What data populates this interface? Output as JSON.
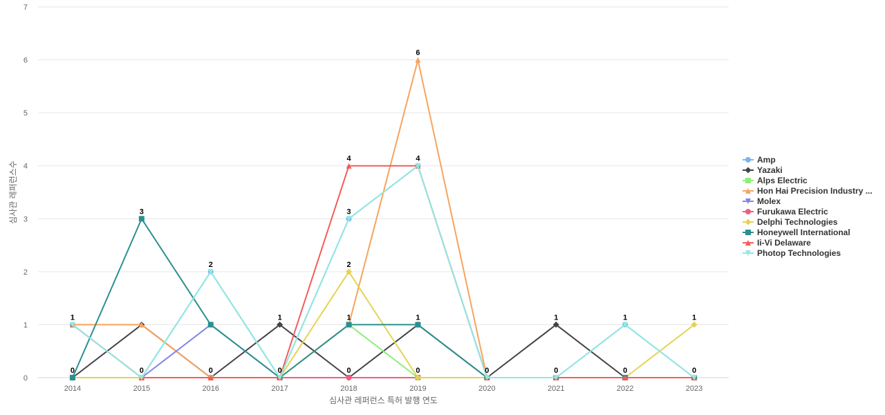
{
  "chart_data": {
    "type": "line",
    "title": "",
    "xlabel": "심사관 레퍼런스 특허 발행 연도",
    "ylabel": "심사관 레퍼런스수",
    "categories": [
      "2014",
      "2015",
      "2016",
      "2017",
      "2018",
      "2019",
      "2020",
      "2021",
      "2022",
      "2023"
    ],
    "y_ticks": [
      "0",
      "1",
      "2",
      "3",
      "4",
      "5",
      "6",
      "7"
    ],
    "ylim": [
      0,
      7
    ],
    "grid": true,
    "legend_position": "right",
    "series": [
      {
        "name": "Amp",
        "values": [
          1,
          0,
          2,
          0,
          3,
          4,
          0,
          0,
          1,
          0
        ],
        "color": "#7cb5ec",
        "marker": "circle"
      },
      {
        "name": "Yazaki",
        "values": [
          0,
          1,
          0,
          1,
          0,
          1,
          0,
          1,
          0,
          0
        ],
        "color": "#434348",
        "marker": "diamond"
      },
      {
        "name": "Alps Electric",
        "values": [
          0,
          0,
          0,
          0,
          1,
          0,
          0,
          0,
          0,
          0
        ],
        "color": "#90ed7d",
        "marker": "square"
      },
      {
        "name": "Hon Hai Precision Industry ...",
        "values": [
          1,
          1,
          0,
          0,
          1,
          6,
          0,
          0,
          0,
          0
        ],
        "color": "#f7a35c",
        "marker": "triangle"
      },
      {
        "name": "Molex",
        "values": [
          0,
          0,
          1,
          0,
          0,
          0,
          0,
          0,
          0,
          0
        ],
        "color": "#8085e9",
        "marker": "triangle-down"
      },
      {
        "name": "Furukawa Electric",
        "values": [
          0,
          0,
          0,
          0,
          0,
          0,
          0,
          0,
          0,
          0
        ],
        "color": "#f15c80",
        "marker": "circle"
      },
      {
        "name": "Delphi Technologies",
        "values": [
          0,
          0,
          0,
          0,
          2,
          0,
          0,
          0,
          0,
          1
        ],
        "color": "#e4d354",
        "marker": "diamond"
      },
      {
        "name": "Honeywell International",
        "values": [
          0,
          3,
          1,
          0,
          1,
          1,
          0,
          0,
          0,
          0
        ],
        "color": "#2b908f",
        "marker": "square"
      },
      {
        "name": "Ii-Vi Delaware",
        "values": [
          1,
          0,
          0,
          0,
          4,
          4,
          0,
          0,
          0,
          0
        ],
        "color": "#f45b5b",
        "marker": "triangle"
      },
      {
        "name": "Photop Technologies",
        "values": [
          1,
          0,
          2,
          0,
          3,
          4,
          0,
          0,
          1,
          0
        ],
        "color": "#91e8e1",
        "marker": "triangle-down"
      }
    ],
    "data_labels": [
      {
        "category": "2014",
        "top": "1",
        "bottom": "0"
      },
      {
        "category": "2015",
        "top": "3",
        "bottom": "0"
      },
      {
        "category": "2016",
        "top": "2",
        "bottom": "0"
      },
      {
        "category": "2017",
        "top": "1",
        "bottom": "0"
      },
      {
        "category": "2018",
        "top": "4",
        "bottom": "0"
      },
      {
        "category": "2018",
        "top": "3",
        "bottom": ""
      },
      {
        "category": "2018",
        "top": "2",
        "bottom": ""
      },
      {
        "category": "2018",
        "top": "1",
        "bottom": ""
      },
      {
        "category": "2019",
        "top": "6",
        "bottom": "0"
      },
      {
        "category": "2019",
        "top": "4",
        "bottom": ""
      },
      {
        "category": "2019",
        "top": "1",
        "bottom": ""
      },
      {
        "category": "2020",
        "top": "",
        "bottom": "0"
      },
      {
        "category": "2021",
        "top": "1",
        "bottom": "0"
      },
      {
        "category": "2022",
        "top": "1",
        "bottom": "0"
      },
      {
        "category": "2023",
        "top": "1",
        "bottom": "0"
      }
    ]
  }
}
